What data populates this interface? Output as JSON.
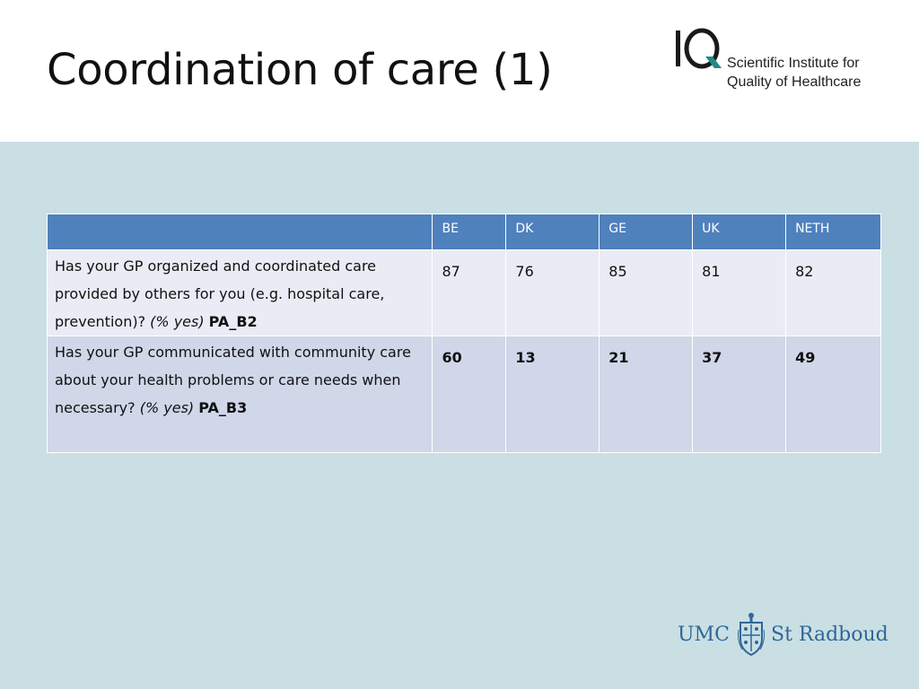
{
  "slide": {
    "title": "Coordination of care (1)"
  },
  "logo_iq": {
    "mark": "IQ",
    "line1": "Scientific Institute for",
    "line2": "Quality of Healthcare"
  },
  "table": {
    "headers": [
      "",
      "BE",
      "DK",
      "GE",
      "UK",
      "NETH"
    ],
    "rows": [
      {
        "question": "Has your GP organized and coordinated care provided by others for you (e.g. hospital care, prevention)?",
        "qualifier": "(% yes)",
        "code": "PA_B2",
        "values": [
          "87",
          "76",
          "85",
          "81",
          "82"
        ]
      },
      {
        "question": "Has your GP communicated with community care about your health problems or care needs when necessary?",
        "qualifier": "(% yes)",
        "code": "PA_B3",
        "values": [
          "60",
          "13",
          "21",
          "37",
          "49"
        ]
      }
    ]
  },
  "logo_umc": {
    "left": "UMC",
    "right": "St Radboud"
  },
  "colors": {
    "header_blue": "#4f81bd",
    "row_light": "#e9ecf4",
    "row_dark": "#cfd7e8",
    "background": "#c9dfe4",
    "iq_teal": "#1f8a8a",
    "umc_blue": "#2f6796"
  }
}
